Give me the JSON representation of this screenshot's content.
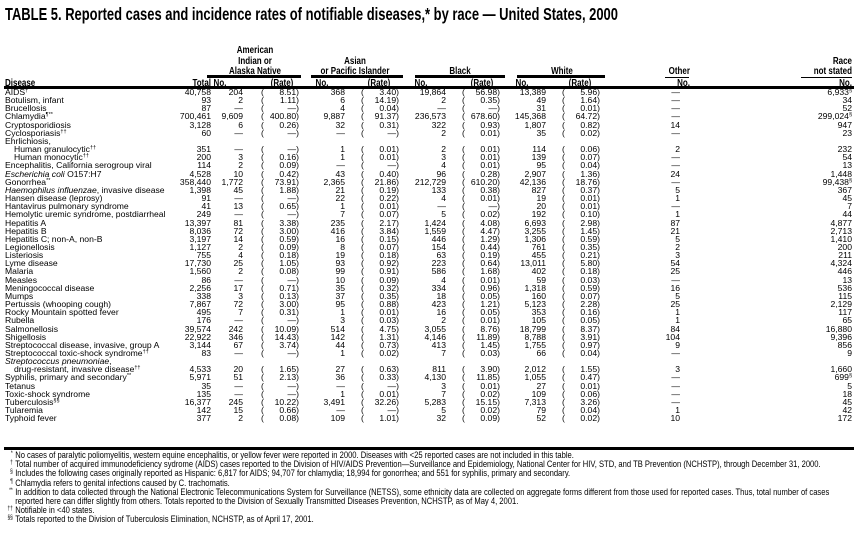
{
  "title": "TABLE 5. Reported cases and incidence rates of notifiable diseases,* by race — United States, 2000",
  "headers": {
    "disease": "Disease",
    "total": "Total",
    "aian": [
      "American",
      "Indian or",
      "Alaska Native"
    ],
    "api": [
      "Asian",
      "or Pacific Islander"
    ],
    "black": "Black",
    "white": "White",
    "other": "Other",
    "not_stated": [
      "Race",
      "not stated"
    ],
    "no": "No.",
    "rate": "(Rate)"
  },
  "rows": [
    {
      "n": "AIDS",
      "s": "†",
      "v": [
        "40,758",
        "204",
        "8.51",
        "368",
        "3.40",
        "19,864",
        "56.98",
        "13,389",
        "5.96",
        "—",
        "6,933"
      ],
      "ns_sup": "§"
    },
    {
      "n": "Botulism, infant",
      "v": [
        "93",
        "2",
        "1.11",
        "6",
        "14.19",
        "2",
        "0.35",
        "49",
        "1.64",
        "—",
        "34"
      ]
    },
    {
      "n": "Brucellosis",
      "v": [
        "87",
        "—",
        "—",
        "4",
        "0.04",
        "—",
        "—",
        "31",
        "0.01",
        "—",
        "52"
      ]
    },
    {
      "n": "Chlamydia",
      "s": "¶**",
      "v": [
        "700,461",
        "9,609",
        "400.80",
        "9,887",
        "91.37",
        "236,573",
        "678.60",
        "145,368",
        "64.72",
        "—",
        "299,024"
      ],
      "ns_sup": "§"
    },
    {
      "n": "Cryptosporidiosis",
      "v": [
        "3,128",
        "6",
        "0.26",
        "32",
        "0.31",
        "322",
        "0.93",
        "1,807",
        "0.82",
        "14",
        "947"
      ]
    },
    {
      "n": "Cyclosporiasis",
      "s": "††",
      "v": [
        "60",
        "—",
        "—",
        "—",
        "—",
        "2",
        "0.01",
        "35",
        "0.02",
        "—",
        "23"
      ]
    },
    {
      "n": "Ehrlichiosis,",
      "v": []
    },
    {
      "n": "Human granulocytic",
      "s": "††",
      "sub": true,
      "v": [
        "351",
        "—",
        "—",
        "1",
        "0.01",
        "2",
        "0.01",
        "114",
        "0.06",
        "2",
        "232"
      ]
    },
    {
      "n": "Human monocytic",
      "s": "††",
      "sub": true,
      "v": [
        "200",
        "3",
        "0.16",
        "1",
        "0.01",
        "3",
        "0.01",
        "139",
        "0.07",
        "—",
        "54"
      ]
    },
    {
      "n": "Encephalitis, California serogroup viral",
      "v": [
        "114",
        "2",
        "0.09",
        "—",
        "—",
        "4",
        "0.01",
        "95",
        "0.04",
        "—",
        "13"
      ]
    },
    {
      "i": "Escherichia coli",
      "n": " O157:H7",
      "v": [
        "4,528",
        "10",
        "0.42",
        "43",
        "0.40",
        "96",
        "0.28",
        "2,907",
        "1.36",
        "24",
        "1,448"
      ]
    },
    {
      "n": "Gonorrhea",
      "s": "**",
      "v": [
        "358,440",
        "1,772",
        "73.91",
        "2,365",
        "21.86",
        "212,729",
        "610.20",
        "42,136",
        "18.76",
        "—",
        "99,438"
      ],
      "ns_sup": "§"
    },
    {
      "i": "Haemophilus influenzae",
      "n": ", invasive disease",
      "v": [
        "1,398",
        "45",
        "1.88",
        "21",
        "0.19",
        "133",
        "0.38",
        "827",
        "0.37",
        "5",
        "367"
      ]
    },
    {
      "n": "Hansen disease (leprosy)",
      "v": [
        "91",
        "—",
        "—",
        "22",
        "0.22",
        "4",
        "0.01",
        "19",
        "0.01",
        "1",
        "45"
      ]
    },
    {
      "n": "Hantavirus pulmonary syndrome",
      "v": [
        "41",
        "13",
        "0.65",
        "1",
        "0.01",
        "—",
        "—",
        "20",
        "0.01",
        "—",
        "7"
      ]
    },
    {
      "n": "Hemolytic uremic syndrome, postdiarrheal",
      "v": [
        "249",
        "—",
        "—",
        "7",
        "0.07",
        "5",
        "0.02",
        "192",
        "0.10",
        "1",
        "44"
      ]
    },
    {
      "n": "Hepatitis A",
      "v": [
        "13,397",
        "81",
        "3.38",
        "235",
        "2.17",
        "1,424",
        "4.08",
        "6,693",
        "2.98",
        "87",
        "4,877"
      ]
    },
    {
      "n": "Hepatitis B",
      "v": [
        "8,036",
        "72",
        "3.00",
        "416",
        "3.84",
        "1,559",
        "4.47",
        "3,255",
        "1.45",
        "21",
        "2,713"
      ]
    },
    {
      "n": "Hepatitis C; non-A, non-B",
      "v": [
        "3,197",
        "14",
        "0.59",
        "16",
        "0.15",
        "446",
        "1.29",
        "1,306",
        "0.59",
        "5",
        "1,410"
      ]
    },
    {
      "n": "Legionellosis",
      "v": [
        "1,127",
        "2",
        "0.09",
        "8",
        "0.07",
        "154",
        "0.44",
        "761",
        "0.35",
        "2",
        "200"
      ]
    },
    {
      "n": "Listeriosis",
      "v": [
        "755",
        "4",
        "0.18",
        "19",
        "0.18",
        "63",
        "0.19",
        "455",
        "0.21",
        "3",
        "211"
      ]
    },
    {
      "n": "Lyme disease",
      "v": [
        "17,730",
        "25",
        "1.05",
        "93",
        "0.92",
        "223",
        "0.64",
        "13,011",
        "5.80",
        "54",
        "4,324"
      ]
    },
    {
      "n": "Malaria",
      "v": [
        "1,560",
        "2",
        "0.08",
        "99",
        "0.91",
        "586",
        "1.68",
        "402",
        "0.18",
        "25",
        "446"
      ]
    },
    {
      "n": "Measles",
      "v": [
        "86",
        "—",
        "—",
        "10",
        "0.09",
        "4",
        "0.01",
        "59",
        "0.03",
        "—",
        "13"
      ]
    },
    {
      "n": "Meningococcal disease",
      "v": [
        "2,256",
        "17",
        "0.71",
        "35",
        "0.32",
        "334",
        "0.96",
        "1,318",
        "0.59",
        "16",
        "536"
      ]
    },
    {
      "n": "Mumps",
      "v": [
        "338",
        "3",
        "0.13",
        "37",
        "0.35",
        "18",
        "0.05",
        "160",
        "0.07",
        "5",
        "115"
      ]
    },
    {
      "n": "Pertussis (whooping cough)",
      "v": [
        "7,867",
        "72",
        "3.00",
        "95",
        "0.88",
        "423",
        "1.21",
        "5,123",
        "2.28",
        "25",
        "2,129"
      ]
    },
    {
      "n": "Rocky Mountain spotted fever",
      "v": [
        "495",
        "7",
        "0.31",
        "1",
        "0.01",
        "16",
        "0.05",
        "353",
        "0.16",
        "1",
        "117"
      ]
    },
    {
      "n": "Rubella",
      "v": [
        "176",
        "—",
        "—",
        "3",
        "0.03",
        "2",
        "0.01",
        "105",
        "0.05",
        "1",
        "65"
      ]
    },
    {
      "n": "Salmonellosis",
      "v": [
        "39,574",
        "242",
        "10.09",
        "514",
        "4.75",
        "3,055",
        "8.76",
        "18,799",
        "8.37",
        "84",
        "16,880"
      ]
    },
    {
      "n": "Shigellosis",
      "v": [
        "22,922",
        "346",
        "14.43",
        "142",
        "1.31",
        "4,146",
        "11.89",
        "8,788",
        "3.91",
        "104",
        "9,396"
      ]
    },
    {
      "n": "Streptococcal disease, invasive, group A",
      "v": [
        "3,144",
        "67",
        "3.74",
        "44",
        "0.73",
        "413",
        "1.45",
        "1,755",
        "0.97",
        "9",
        "856"
      ]
    },
    {
      "n": "Streptococcal toxic-shock syndrome",
      "s": "††",
      "v": [
        "83",
        "—",
        "—",
        "1",
        "0.02",
        "7",
        "0.03",
        "66",
        "0.04",
        "—",
        "9"
      ]
    },
    {
      "i": "Streptococcus pneumoniae",
      "n": ",",
      "v": []
    },
    {
      "n": "drug-resistant, invasive disease",
      "s": "††",
      "sub": true,
      "v": [
        "4,533",
        "20",
        "1.65",
        "27",
        "0.63",
        "811",
        "3.90",
        "2,012",
        "1.55",
        "3",
        "1,660"
      ]
    },
    {
      "n": "Syphilis, primary and secondary",
      "s": "**",
      "v": [
        "5,971",
        "51",
        "2.13",
        "36",
        "0.33",
        "4,130",
        "11.85",
        "1,055",
        "0.47",
        "—",
        "699"
      ],
      "ns_sup": "§"
    },
    {
      "n": "Tetanus",
      "v": [
        "35",
        "—",
        "—",
        "—",
        "—",
        "3",
        "0.01",
        "27",
        "0.01",
        "—",
        "5"
      ]
    },
    {
      "n": "Toxic-shock syndrome",
      "v": [
        "135",
        "—",
        "—",
        "1",
        "0.01",
        "7",
        "0.02",
        "109",
        "0.06",
        "—",
        "18"
      ]
    },
    {
      "n": "Tuberculosis",
      "s": "§§",
      "v": [
        "16,377",
        "245",
        "10.22",
        "3,491",
        "32.26",
        "5,283",
        "15.15",
        "7,313",
        "3.26",
        "—",
        "45"
      ]
    },
    {
      "n": "Tularemia",
      "v": [
        "142",
        "15",
        "0.66",
        "—",
        "—",
        "5",
        "0.02",
        "79",
        "0.04",
        "1",
        "42"
      ]
    },
    {
      "n": "Typhoid fever",
      "v": [
        "377",
        "2",
        "0.08",
        "109",
        "1.01",
        "32",
        "0.09",
        "52",
        "0.02",
        "10",
        "172"
      ]
    }
  ],
  "footnotes": [
    {
      "m": "*",
      "t": "No cases of paralytic poliomyelitis, western equine encephalitis, or yellow fever were reported in 2000. Diseases with <25 reported cases are not included in this table."
    },
    {
      "m": "†",
      "t": "Total number of acquired immunodeficiency sydrome (AIDS) cases reported to the Division of HIV/AIDS Prevention—Surveillance and Epidemiology, National Center for HIV, STD, and TB Prevention (NCHSTP), through December 31, 2000."
    },
    {
      "m": "§",
      "t": "Includes the following cases originally reported as Hispanic: 6,817 for AIDS; 94,707 for chlamydia; 18,994 for gonorrhea; and 551 for syphilis, primary and secondary."
    },
    {
      "m": "¶",
      "t": "Chlamydia refers to genital infections caused by C. trachomatis."
    },
    {
      "m": "**",
      "t": "In addition to data collected through the National Electronic Telecommunications System for Surveillance (NETSS), some ethnicity data are collected on aggregate forms different from those used for reported cases. Thus, total number of cases reported here can differ slightly from others. Totals reported to the Division of Sexually Transmitted Diseases Prevention, NCHSTP, as of May 4, 2001."
    },
    {
      "m": "††",
      "t": "Notifiable in <40 states."
    },
    {
      "m": "§§",
      "t": "Totals reported to the Division of Tuberculosis Elimination, NCHSTP, as of April 17, 2001."
    }
  ]
}
